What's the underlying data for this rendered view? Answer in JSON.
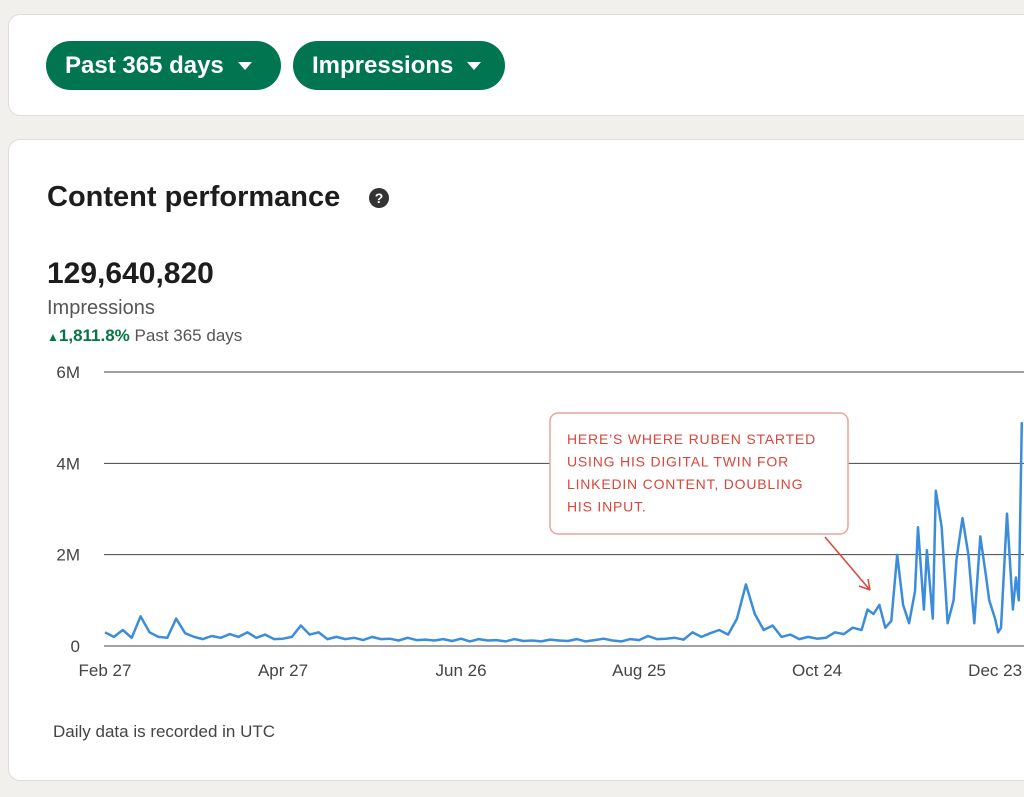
{
  "filters": [
    {
      "label": "Past 365 days"
    },
    {
      "label": "Impressions"
    }
  ],
  "card": {
    "title": "Content performance",
    "metric": {
      "value": "129,640,820",
      "label": "Impressions",
      "change": "1,811.8%",
      "period": "Past 365 days"
    },
    "footnote": "Daily data is recorded in UTC"
  },
  "chart_data": {
    "type": "line",
    "color": "#3b8ddb",
    "grid": true,
    "xlim": [
      0,
      364
    ],
    "ylim": [
      0,
      6000000
    ],
    "xticks": [
      {
        "value": 0,
        "label": "Feb 27"
      },
      {
        "value": 60,
        "label": "Apr 27"
      },
      {
        "value": 120,
        "label": "Jun 26"
      },
      {
        "value": 180,
        "label": "Aug 25"
      },
      {
        "value": 240,
        "label": "Oct 24"
      },
      {
        "value": 300,
        "label": "Dec 23"
      }
    ],
    "yticks": [
      0,
      {
        "value": 2000000,
        "label": "2M"
      },
      {
        "value": 4000000,
        "label": "4M"
      },
      {
        "value": 6000000,
        "label": "6M"
      }
    ],
    "x": [
      0,
      3,
      6,
      9,
      12,
      15,
      18,
      21,
      24,
      27,
      30,
      33,
      36,
      39,
      42,
      45,
      48,
      51,
      54,
      57,
      60,
      63,
      66,
      69,
      72,
      75,
      78,
      81,
      84,
      87,
      90,
      93,
      96,
      99,
      102,
      105,
      108,
      111,
      114,
      117,
      120,
      123,
      126,
      129,
      132,
      135,
      138,
      141,
      144,
      147,
      150,
      153,
      156,
      159,
      162,
      165,
      168,
      171,
      174,
      177,
      180,
      183,
      186,
      189,
      192,
      195,
      198,
      201,
      204,
      207,
      210,
      213,
      216,
      219,
      222,
      225,
      228,
      231,
      234,
      237,
      240,
      243,
      246,
      249,
      252,
      255,
      257,
      259,
      261,
      263,
      265,
      267,
      269,
      271,
      273,
      274,
      276,
      277,
      279,
      280,
      282,
      284,
      286,
      287,
      289,
      291,
      293,
      295,
      297,
      298,
      300,
      301,
      302,
      304,
      306,
      307,
      308,
      309
    ],
    "values": [
      300000,
      200000,
      350000,
      180000,
      650000,
      300000,
      200000,
      180000,
      600000,
      280000,
      200000,
      150000,
      220000,
      180000,
      260000,
      200000,
      300000,
      180000,
      250000,
      150000,
      160000,
      200000,
      450000,
      250000,
      300000,
      150000,
      200000,
      150000,
      180000,
      130000,
      200000,
      150000,
      160000,
      120000,
      180000,
      130000,
      140000,
      120000,
      150000,
      110000,
      160000,
      100000,
      150000,
      120000,
      130000,
      100000,
      150000,
      110000,
      120000,
      100000,
      140000,
      120000,
      110000,
      150000,
      100000,
      130000,
      160000,
      120000,
      100000,
      150000,
      130000,
      220000,
      150000,
      160000,
      180000,
      140000,
      300000,
      200000,
      280000,
      350000,
      250000,
      600000,
      1350000,
      700000,
      350000,
      450000,
      200000,
      250000,
      150000,
      200000,
      160000,
      180000,
      300000,
      260000,
      400000,
      350000,
      800000,
      700000,
      900000,
      400000,
      550000,
      2000000,
      900000,
      500000,
      1200000,
      2600000,
      800000,
      2100000,
      600000,
      3400000,
      2600000,
      500000,
      1000000,
      1900000,
      2800000,
      2000000,
      500000,
      2400000,
      1500000,
      1000000,
      600000,
      300000,
      400000,
      2900000,
      800000,
      1500000,
      1000000,
      4900000
    ],
    "annotation": [
      "HERE’S WHERE RUBEN STARTED",
      "USING HIS DIGITAL TWIN FOR",
      "LINKEDIN CONTENT, DOUBLING",
      "HIS INPUT."
    ]
  }
}
